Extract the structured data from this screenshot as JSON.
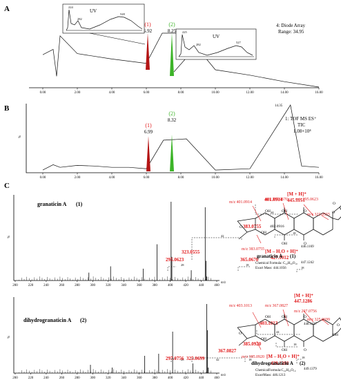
{
  "colors": {
    "red": "#e0181a",
    "green": "#3cb428",
    "dark_red": "#b41414"
  },
  "panels": {
    "A": {
      "letter": "A",
      "x_ticks": [
        "0.00",
        "2.00",
        "4.00",
        "6.00",
        "8.00",
        "10.00",
        "12.00",
        "14.00",
        "16.00"
      ],
      "info_line1": "4: Diode Array",
      "info_line2": "Range: 34.95",
      "peak1": {
        "tag": "(1)",
        "rt": "6.92"
      },
      "peak2": {
        "tag": "(2)",
        "rt": "8.25"
      },
      "uv1": {
        "title": "UV",
        "labels": [
          "224",
          "282",
          "528"
        ]
      },
      "uv2": {
        "title": "UV",
        "labels": [
          "225",
          "282",
          "527"
        ]
      }
    },
    "B": {
      "letter": "B",
      "x_ticks": [
        "0.00",
        "2.00",
        "4.00",
        "6.00",
        "8.00",
        "10.00",
        "12.00",
        "14.00",
        "16.00"
      ],
      "y_label": "%",
      "info_line1": "1: TOF MS ES⁺",
      "info_line2": "TIC",
      "info_line3": "1.08×10⁴",
      "peak1": {
        "tag": "(1)",
        "rt": "6.99"
      },
      "peak2": {
        "tag": "(2)",
        "rt": "8.32"
      },
      "peak3_rt": "14.35"
    },
    "C": {
      "letter": "C"
    }
  },
  "spectrum1": {
    "name": "granaticin A",
    "num": "(1)",
    "x_ticks": [
      "200",
      "220",
      "240",
      "260",
      "280",
      "300",
      "320",
      "340",
      "360",
      "380",
      "400",
      "420",
      "440",
      "460"
    ],
    "x_unit": "m/z",
    "y_label": "%",
    "peak_labels": [
      "401.0914",
      "[M + H]⁺",
      "445.1151",
      "383.0755",
      "402.0916",
      "323.0555",
      "295.0623",
      "365.0670",
      "[M – H₂O + H]⁺",
      "427.1012",
      "446.1169",
      "447.1242"
    ],
    "gap_labels": [
      "42",
      "44",
      "18",
      "28",
      "18",
      "18"
    ]
  },
  "spectrum2": {
    "name": "dihydrogranaticin A",
    "num": "(2)",
    "x_ticks": [
      "200",
      "220",
      "240",
      "260",
      "280",
      "300",
      "320",
      "340",
      "360",
      "380",
      "400",
      "420",
      "440",
      "460"
    ],
    "x_unit": "m/z",
    "y_label": "%",
    "peak_labels": [
      "[M + H]⁺",
      "447.1286",
      "403.1013",
      "448.1327",
      "385.0920",
      "367.0827",
      "297.0756",
      "325.0699",
      "[M – H₂O + H]⁺",
      "429.1202",
      "449.1379"
    ],
    "gap_labels": [
      "44",
      "18",
      "28",
      "42",
      "18",
      "18"
    ]
  },
  "structure1": {
    "mz_labels": [
      "m/z 401.0914",
      "m/z 365.0670",
      "m/z 295.0623",
      "m/z 323.0555",
      "m/z 383.0755"
    ],
    "atoms": [
      "OH",
      "OH",
      "OH",
      "OH",
      "O",
      "O",
      "O",
      "O",
      "O"
    ],
    "name": "granaticin A",
    "num": "(1)",
    "formula": "Chemical Formula: C₂₂H₂₀O₁₀",
    "mass": "Exact Mass: 444.1056"
  },
  "structure2": {
    "mz_labels": [
      "m/z 403.1013",
      "m/z 367.0827",
      "m/z 297.0756",
      "m/z 325.0699",
      "m/z 385.0920"
    ],
    "atoms": [
      "OH",
      "OH",
      "OH",
      "OH",
      "O",
      "O",
      "O",
      "O",
      "OH"
    ],
    "name": "dihydrogranaticin A",
    "num": "(2)",
    "formula": "ChemicalFormula:C₂₂H₂₂O₁₀",
    "mass": "ExactMass: 446.1213"
  },
  "chart_data": [
    {
      "type": "line",
      "title": "Diode Array chromatogram",
      "xlim": [
        0,
        16
      ],
      "series": [
        {
          "x": [
            0.0,
            0.6,
            0.8,
            1.0,
            2.0,
            4.0,
            6.0,
            6.92,
            8.25,
            10.0,
            12.0,
            14.0,
            16.0
          ],
          "y": [
            60,
            70,
            20,
            95,
            62,
            52,
            44,
            100,
            100,
            32,
            22,
            10,
            0
          ]
        }
      ]
    },
    {
      "type": "line",
      "title": "TIC",
      "xlim": [
        0,
        16
      ],
      "series": [
        {
          "x": [
            0.0,
            0.6,
            1.0,
            2.0,
            3.0,
            4.0,
            5.0,
            6.0,
            6.99,
            8.32,
            10.0,
            12.0,
            14.35,
            15.0,
            16.0
          ],
          "y": [
            2,
            10,
            6,
            9,
            8,
            6,
            6,
            4,
            47,
            49,
            2,
            4,
            100,
            8,
            6
          ]
        }
      ]
    },
    {
      "type": "bar",
      "title": "granaticin A (1)",
      "x_unit": "m/z",
      "x": [
        295.0623,
        323.0555,
        365.067,
        383.0755,
        401.0914,
        402.0916,
        427.1012,
        445.1151,
        446.1169,
        447.1242
      ],
      "y": [
        10,
        18,
        15,
        46,
        100,
        30,
        13,
        93,
        25,
        5
      ]
    },
    {
      "type": "bar",
      "title": "dihydrogranaticin A (2)",
      "x_unit": "m/z",
      "x": [
        297.0756,
        325.0699,
        367.0827,
        385.092,
        403.1013,
        429.1202,
        447.1286,
        448.1327,
        449.1379
      ],
      "y": [
        12,
        8,
        25,
        28,
        60,
        14,
        100,
        62,
        8
      ]
    }
  ]
}
